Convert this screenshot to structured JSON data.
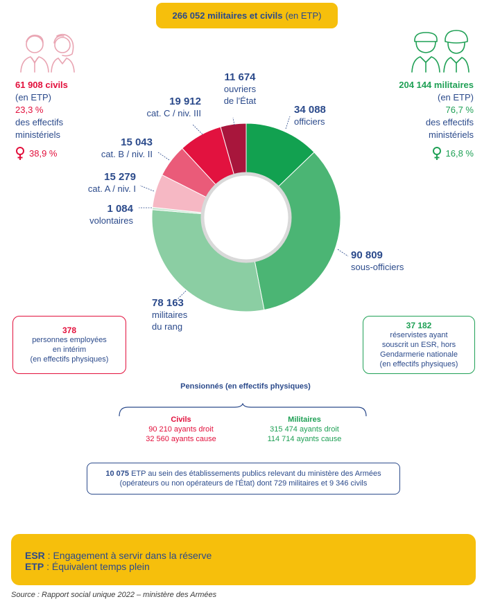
{
  "header": {
    "total_bold": "266 052 militaires et civils",
    "total_unit": "(en ETP)"
  },
  "civils": {
    "title": "61 908 civils",
    "unit": "(en ETP)",
    "pct": "23,3 %",
    "desc1": "des effectifs",
    "desc2": "ministériels",
    "female_pct": "38,9 %"
  },
  "militaires": {
    "title": "204 144 militaires",
    "unit": "(en ETP)",
    "pct": "76,7 %",
    "desc1": "des effectifs",
    "desc2": "ministériels",
    "female_pct": "16,8 %"
  },
  "chart_data": {
    "type": "pie",
    "slices": [
      {
        "value": 34088,
        "value_label": "34 088",
        "label": [
          "officiers"
        ],
        "color": "#12a150"
      },
      {
        "value": 90809,
        "value_label": "90 809",
        "label": [
          "sous-officiers"
        ],
        "color": "#4bb574"
      },
      {
        "value": 78163,
        "value_label": "78 163",
        "label": [
          "militaires",
          "du rang"
        ],
        "color": "#8bcea3"
      },
      {
        "value": 1084,
        "value_label": "1 084",
        "label": [
          "volontaires"
        ],
        "color": "#c9e7d3"
      },
      {
        "value": 15279,
        "value_label": "15 279",
        "label": [
          "cat. A / niv. I"
        ],
        "color": "#f6b8c4"
      },
      {
        "value": 15043,
        "value_label": "15 043",
        "label": [
          "cat. B / niv. II"
        ],
        "color": "#ea5b79"
      },
      {
        "value": 19912,
        "value_label": "19 912",
        "label": [
          "cat. C / niv. III"
        ],
        "color": "#e2123f"
      },
      {
        "value": 11674,
        "value_label": "11 674",
        "label": [
          "ouvriers",
          "de l'État"
        ],
        "color": "#a8163c"
      }
    ]
  },
  "interim": {
    "number": "378",
    "line1": "personnes employées",
    "line2": "en intérim",
    "line3": "(en effectifs physiques)"
  },
  "reservistes": {
    "number": "37 182",
    "line1": "réservistes ayant",
    "line2": "souscrit un ESR, hors",
    "line3": "Gendarmerie nationale",
    "line4": "(en effectifs physiques)"
  },
  "pensionnes": {
    "title": "Pensionnés (en effectifs physiques)",
    "civils": {
      "heading": "Civils",
      "droit": "90 210 ayants droit",
      "cause": "32 560 ayants cause"
    },
    "militaires": {
      "heading": "Militaires",
      "droit": "315 474 ayants droit",
      "cause": "114 714 ayants cause"
    }
  },
  "etablissements": {
    "bold": "10 075",
    "text": " ETP au sein des établissements publics relevant du ministère des Armées (opérateurs ou non opérateurs de l'État) dont 729 militaires et 9 346 civils"
  },
  "legend": {
    "esr_abbr": "ESR",
    "esr_text": " : Engagement à servir dans la réserve",
    "etp_abbr": "ETP",
    "etp_text": " : Équivalent temps plein"
  },
  "source": "Source : Rapport social unique 2022 – ministère des Armées",
  "colors": {
    "yellow": "#f6bf0c",
    "blue": "#2b4a8b",
    "red": "#e20f3b",
    "green": "#1fa055"
  },
  "icons": [
    "couple-civilians-icon",
    "couple-soldiers-icon",
    "female-symbol-icon"
  ]
}
